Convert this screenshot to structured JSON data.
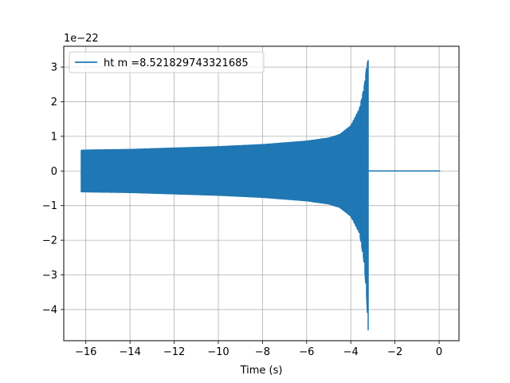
{
  "chart_data": {
    "type": "line",
    "title": "",
    "xlabel": "Time (s)",
    "ylabel": "",
    "y_offset_label": "1e−22",
    "xlim": [
      -17,
      0.9
    ],
    "ylim": [
      -4.9,
      3.6
    ],
    "xticks": [
      -16,
      -14,
      -12,
      -10,
      -8,
      -6,
      -4,
      -2,
      0
    ],
    "xtick_labels": [
      "−16",
      "−14",
      "−12",
      "−10",
      "−8",
      "−6",
      "−4",
      "−2",
      "0"
    ],
    "yticks": [
      -4,
      -3,
      -2,
      -1,
      0,
      1,
      2,
      3
    ],
    "ytick_labels": [
      "−4",
      "−3",
      "−2",
      "−1",
      "0",
      "1",
      "2",
      "3"
    ],
    "grid": true,
    "legend_position": "upper-left",
    "series": [
      {
        "name": "ht m =8.521829743321685",
        "color": "#1f77b4",
        "t_start": -16.2,
        "t_merger": -3.2,
        "t_end": 0.05,
        "envelope_upper": [
          [
            -16.2,
            0.6
          ],
          [
            -14,
            0.62
          ],
          [
            -12,
            0.66
          ],
          [
            -10,
            0.7
          ],
          [
            -8,
            0.76
          ],
          [
            -6,
            0.86
          ],
          [
            -5,
            0.95
          ],
          [
            -4.5,
            1.05
          ],
          [
            -4,
            1.3
          ],
          [
            -3.6,
            1.8
          ],
          [
            -3.4,
            2.4
          ],
          [
            -3.28,
            3.0
          ],
          [
            -3.22,
            3.2
          ]
        ],
        "envelope_lower": [
          [
            -16.2,
            -0.6
          ],
          [
            -14,
            -0.62
          ],
          [
            -12,
            -0.66
          ],
          [
            -10,
            -0.7
          ],
          [
            -8,
            -0.76
          ],
          [
            -6,
            -0.86
          ],
          [
            -5,
            -0.95
          ],
          [
            -4.5,
            -1.05
          ],
          [
            -4,
            -1.3
          ],
          [
            -3.6,
            -1.8
          ],
          [
            -3.4,
            -2.6
          ],
          [
            -3.28,
            -3.6
          ],
          [
            -3.22,
            -4.6
          ]
        ],
        "post_merger_value": 0
      }
    ]
  }
}
